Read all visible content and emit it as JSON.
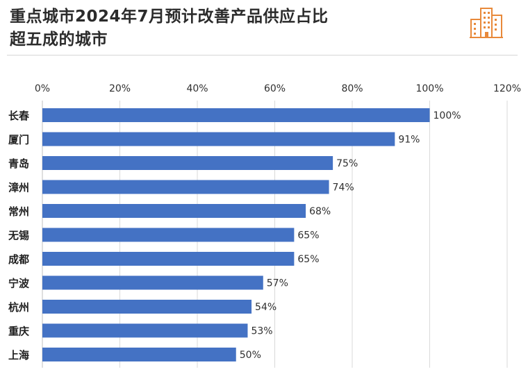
{
  "header": {
    "title_line1": "重点城市2024年7月预计改善产品供应占比",
    "title_line2": "超五成的城市",
    "logo_icon": "building-icon",
    "accent_color": "#e8893a"
  },
  "chart_data": {
    "type": "bar",
    "orientation": "horizontal",
    "categories": [
      "长春",
      "厦门",
      "青岛",
      "漳州",
      "常州",
      "无锡",
      "成都",
      "宁波",
      "杭州",
      "重庆",
      "上海"
    ],
    "values": [
      100,
      91,
      75,
      74,
      68,
      65,
      65,
      57,
      54,
      53,
      50
    ],
    "data_labels": [
      "100%",
      "91%",
      "75%",
      "74%",
      "68%",
      "65%",
      "65%",
      "57%",
      "54%",
      "53%",
      "50%"
    ],
    "xlim": [
      0,
      120
    ],
    "x_ticks": [
      "0%",
      "20%",
      "40%",
      "60%",
      "80%",
      "100%",
      "120%"
    ],
    "x_axis_position": "top",
    "grid": true,
    "bar_color": "#4472c4",
    "title": "重点城市2024年7月预计改善产品供应占比超五成的城市"
  }
}
